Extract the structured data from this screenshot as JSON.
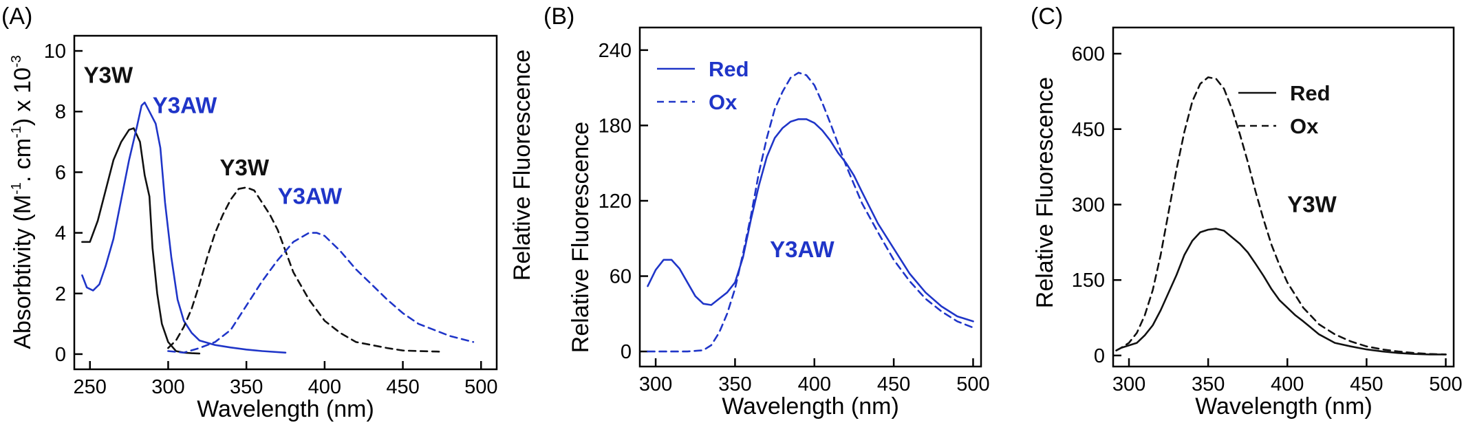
{
  "colors": {
    "black": "#111111",
    "blue": "#1f35c8",
    "frame": "#000000"
  },
  "chart_data": [
    {
      "type": "line",
      "panel_label": "(A)",
      "xlabel": "Wavelength (nm)",
      "ylabel_parts": {
        "pre": "Absorbtivity (M",
        "sup1": "-1",
        "mid": ". cm",
        "sup2": "-1",
        "post": ") x 10",
        "sup3": "-3"
      },
      "xlim": [
        240,
        510
      ],
      "ylim": [
        -0.5,
        10.5
      ],
      "xticks": [
        250,
        300,
        350,
        400,
        450,
        500
      ],
      "yticks": [
        0,
        2,
        4,
        6,
        8,
        10
      ],
      "grid": false,
      "series": [
        {
          "color": "black",
          "dash": "solid",
          "x": [
            245,
            250,
            255,
            260,
            265,
            270,
            275,
            278,
            282,
            285,
            288,
            290,
            293,
            296,
            300,
            305,
            310,
            315,
            320
          ],
          "y": [
            3.7,
            3.7,
            4.4,
            5.4,
            6.4,
            7.0,
            7.4,
            7.45,
            7.0,
            5.9,
            5.2,
            3.5,
            2.0,
            1.0,
            0.4,
            0.1,
            0.05,
            0.03,
            0.02
          ]
        },
        {
          "color": "blue",
          "dash": "solid",
          "x": [
            245,
            248,
            252,
            256,
            260,
            265,
            270,
            275,
            280,
            283,
            285,
            288,
            292,
            295,
            298,
            302,
            306,
            310,
            315,
            320,
            330,
            340,
            350,
            360,
            375
          ],
          "y": [
            2.6,
            2.2,
            2.1,
            2.3,
            2.9,
            3.8,
            5.1,
            6.4,
            7.5,
            8.2,
            8.3,
            8.0,
            7.6,
            6.8,
            5.0,
            3.2,
            1.8,
            1.1,
            0.7,
            0.45,
            0.3,
            0.22,
            0.15,
            0.1,
            0.05
          ]
        },
        {
          "color": "black",
          "dash": "dashed",
          "x": [
            300,
            305,
            310,
            315,
            320,
            325,
            330,
            335,
            340,
            345,
            350,
            355,
            360,
            365,
            370,
            375,
            380,
            390,
            400,
            410,
            420,
            430,
            440,
            450,
            460,
            475
          ],
          "y": [
            0.2,
            0.45,
            0.9,
            1.5,
            2.3,
            3.2,
            4.0,
            4.6,
            5.1,
            5.45,
            5.5,
            5.4,
            5.0,
            4.6,
            4.1,
            3.4,
            2.7,
            1.8,
            1.1,
            0.7,
            0.4,
            0.3,
            0.2,
            0.12,
            0.1,
            0.08
          ]
        },
        {
          "color": "blue",
          "dash": "dashed",
          "x": [
            300,
            310,
            320,
            330,
            340,
            350,
            360,
            370,
            380,
            390,
            395,
            400,
            410,
            420,
            430,
            440,
            450,
            460,
            470,
            480,
            495
          ],
          "y": [
            0.1,
            0.05,
            0.2,
            0.4,
            0.8,
            1.6,
            2.4,
            3.1,
            3.7,
            4.0,
            4.0,
            3.9,
            3.4,
            2.8,
            2.3,
            1.8,
            1.35,
            1.0,
            0.8,
            0.6,
            0.4
          ]
        }
      ],
      "annotations": [
        {
          "text": "Y3W",
          "color": "black",
          "x": 246,
          "y": 8.95
        },
        {
          "text": "Y3AW",
          "color": "blue",
          "x": 290,
          "y": 7.95
        },
        {
          "text": "Y3W",
          "color": "black",
          "x": 333,
          "y": 5.9
        },
        {
          "text": "Y3AW",
          "color": "blue",
          "x": 370,
          "y": 4.95
        }
      ]
    },
    {
      "type": "line",
      "panel_label": "(B)",
      "xlabel": "Wavelength (nm)",
      "ylabel": "Relative Fluorescence",
      "xlim": [
        290,
        505
      ],
      "ylim": [
        -12,
        258
      ],
      "xticks": [
        300,
        350,
        400,
        450,
        500
      ],
      "yticks": [
        0,
        60,
        120,
        180,
        240
      ],
      "grid": false,
      "legend_position": "top-left",
      "legend_color": "blue",
      "series": [
        {
          "name": "Red",
          "color": "blue",
          "dash": "solid",
          "x": [
            295,
            300,
            305,
            310,
            315,
            320,
            325,
            330,
            335,
            340,
            345,
            350,
            355,
            360,
            365,
            370,
            375,
            380,
            385,
            390,
            395,
            400,
            405,
            410,
            415,
            420,
            425,
            430,
            440,
            450,
            460,
            470,
            480,
            490,
            500
          ],
          "y": [
            52,
            65,
            73,
            73,
            66,
            55,
            44,
            38,
            37,
            42,
            47,
            55,
            75,
            105,
            132,
            155,
            170,
            178,
            183,
            185,
            185,
            182,
            176,
            168,
            158,
            150,
            140,
            127,
            102,
            82,
            62,
            47,
            36,
            28,
            24
          ]
        },
        {
          "name": "Ox",
          "color": "blue",
          "dash": "dashed",
          "x": [
            295,
            300,
            310,
            320,
            330,
            335,
            340,
            345,
            350,
            355,
            360,
            365,
            370,
            375,
            380,
            385,
            390,
            395,
            400,
            405,
            410,
            415,
            420,
            425,
            430,
            440,
            450,
            460,
            470,
            480,
            490,
            500
          ],
          "y": [
            0,
            0,
            0,
            0,
            1,
            5,
            15,
            30,
            50,
            78,
            108,
            142,
            170,
            193,
            207,
            218,
            222,
            220,
            212,
            198,
            182,
            165,
            148,
            133,
            118,
            95,
            73,
            56,
            42,
            32,
            24,
            19
          ]
        }
      ],
      "annotations": [
        {
          "text": "Y3AW",
          "color": "blue",
          "x": 372,
          "y": 75
        }
      ]
    },
    {
      "type": "line",
      "panel_label": "(C)",
      "xlabel": "Wavelength (nm)",
      "ylabel": "Relative Fluorescence",
      "xlim": [
        290,
        505
      ],
      "ylim": [
        -22,
        652
      ],
      "xticks": [
        300,
        350,
        400,
        450,
        500
      ],
      "yticks": [
        0,
        150,
        300,
        450,
        600
      ],
      "grid": false,
      "legend_position": "top-right",
      "legend_color": "black",
      "series": [
        {
          "name": "Red",
          "color": "black",
          "dash": "solid",
          "x": [
            292,
            295,
            300,
            305,
            310,
            315,
            320,
            325,
            330,
            335,
            340,
            345,
            350,
            355,
            360,
            365,
            370,
            375,
            380,
            385,
            390,
            395,
            400,
            405,
            410,
            420,
            430,
            440,
            450,
            460,
            470,
            480,
            490,
            500
          ],
          "y": [
            10,
            15,
            20,
            25,
            40,
            60,
            90,
            125,
            160,
            200,
            228,
            245,
            250,
            252,
            248,
            235,
            222,
            205,
            182,
            158,
            132,
            110,
            95,
            80,
            68,
            42,
            25,
            18,
            12,
            8,
            5,
            3,
            2,
            2
          ]
        },
        {
          "name": "Ox",
          "color": "black",
          "dash": "dashed",
          "x": [
            292,
            295,
            300,
            305,
            310,
            315,
            320,
            325,
            330,
            335,
            340,
            345,
            350,
            355,
            360,
            365,
            370,
            375,
            380,
            385,
            390,
            395,
            400,
            410,
            420,
            430,
            440,
            450,
            460,
            470,
            480,
            490,
            500
          ],
          "y": [
            10,
            15,
            25,
            45,
            80,
            130,
            200,
            285,
            370,
            445,
            505,
            540,
            553,
            550,
            530,
            490,
            440,
            385,
            325,
            270,
            220,
            180,
            145,
            95,
            62,
            42,
            28,
            18,
            12,
            8,
            5,
            3,
            2
          ]
        }
      ],
      "annotations": [
        {
          "text": "Y3W",
          "color": "black",
          "x": 400,
          "y": 285
        }
      ]
    }
  ]
}
